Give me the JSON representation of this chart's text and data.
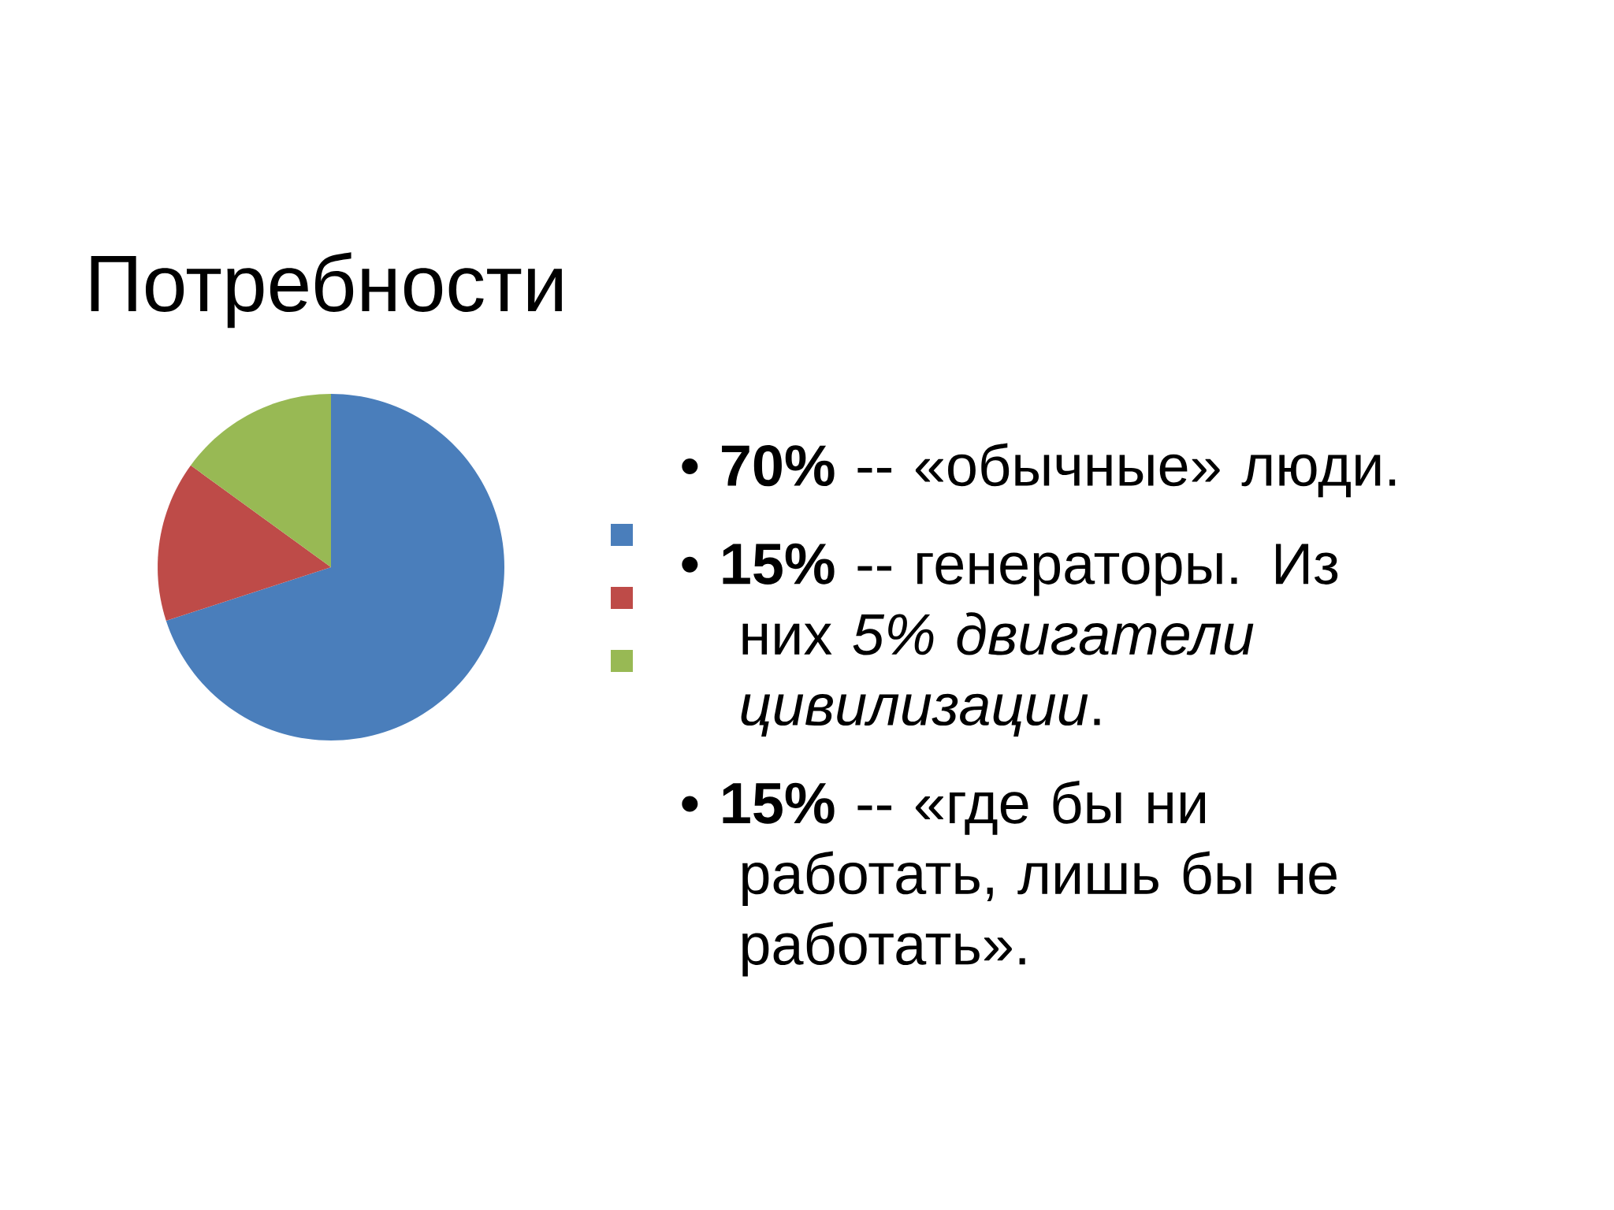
{
  "chart_data": {
    "type": "pie",
    "title": "Потребности",
    "categories": [
      null,
      null,
      null
    ],
    "values": [
      70,
      15,
      15
    ],
    "colors": [
      "#4a7ebb",
      "#be4b48",
      "#98b954"
    ],
    "annotations": [
      "• **70%** -- «обычные» люди.",
      "• **15%** -- генераторы. Из них *5% двигатели цивилизации*.",
      "• **15%** -- «где бы ни работать, лишь бы не работать»."
    ]
  }
}
